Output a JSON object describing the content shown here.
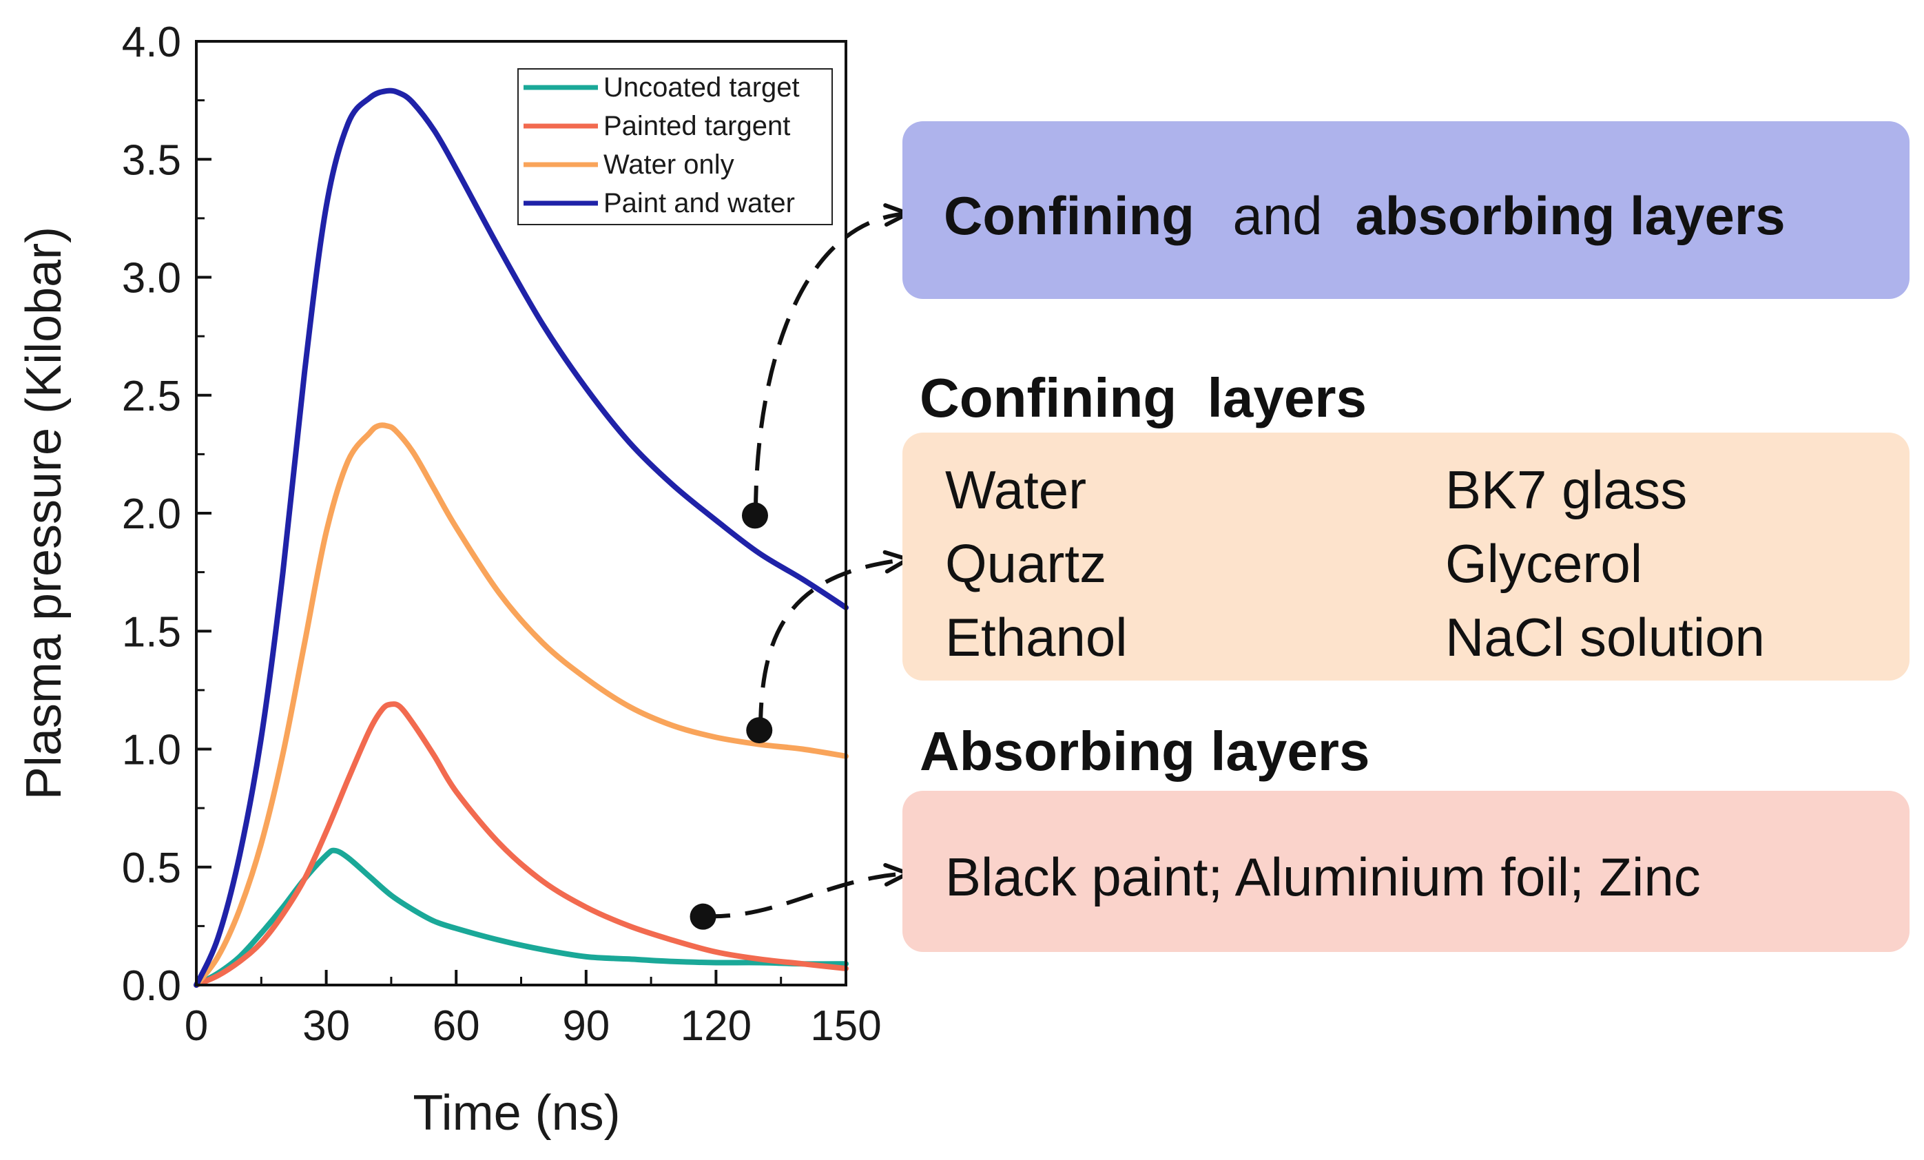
{
  "chart_data": {
    "type": "line",
    "xlabel": "Time (ns)",
    "ylabel": "Plasma pressure (Kilobar)",
    "xlim": [
      0,
      150
    ],
    "ylim": [
      0,
      4.0
    ],
    "xticks": [
      "0",
      "30",
      "60",
      "90",
      "120",
      "150"
    ],
    "yticks": [
      "0.0",
      "0.5",
      "1.0",
      "1.5",
      "2.0",
      "2.5",
      "3.0",
      "3.5",
      "4.0"
    ],
    "legend_position": "top-right",
    "series": [
      {
        "name": "Uncoated target",
        "color": "#1aa898",
        "x": [
          0,
          5,
          10,
          15,
          20,
          25,
          30,
          32,
          35,
          40,
          45,
          50,
          55,
          60,
          70,
          80,
          90,
          100,
          110,
          120,
          130,
          140,
          150
        ],
        "y": [
          0,
          0.05,
          0.12,
          0.22,
          0.33,
          0.45,
          0.55,
          0.57,
          0.54,
          0.46,
          0.38,
          0.32,
          0.27,
          0.24,
          0.19,
          0.15,
          0.12,
          0.11,
          0.1,
          0.095,
          0.095,
          0.09,
          0.09
        ]
      },
      {
        "name": "Painted targent",
        "color": "#f26a4f",
        "x": [
          0,
          5,
          10,
          15,
          20,
          25,
          30,
          35,
          40,
          43,
          45,
          47,
          50,
          55,
          60,
          70,
          80,
          90,
          100,
          110,
          120,
          130,
          140,
          150
        ],
        "y": [
          0,
          0.04,
          0.1,
          0.18,
          0.3,
          0.45,
          0.65,
          0.87,
          1.08,
          1.17,
          1.19,
          1.18,
          1.11,
          0.97,
          0.82,
          0.6,
          0.44,
          0.33,
          0.25,
          0.19,
          0.14,
          0.11,
          0.09,
          0.07
        ]
      },
      {
        "name": "Water only",
        "color": "#f9a45a",
        "x": [
          0,
          5,
          10,
          15,
          20,
          25,
          30,
          35,
          40,
          42,
          44,
          46,
          50,
          55,
          60,
          70,
          80,
          90,
          100,
          110,
          120,
          130,
          140,
          150
        ],
        "y": [
          0,
          0.12,
          0.32,
          0.6,
          0.98,
          1.45,
          1.92,
          2.22,
          2.34,
          2.37,
          2.37,
          2.35,
          2.26,
          2.1,
          1.94,
          1.66,
          1.45,
          1.3,
          1.18,
          1.1,
          1.05,
          1.02,
          1.0,
          0.97
        ]
      },
      {
        "name": "Paint and water",
        "color": "#1f22a8",
        "x": [
          0,
          5,
          10,
          15,
          20,
          25,
          30,
          35,
          40,
          44,
          47,
          50,
          55,
          60,
          70,
          80,
          90,
          100,
          110,
          120,
          130,
          140,
          150
        ],
        "y": [
          0,
          0.2,
          0.55,
          1.05,
          1.75,
          2.6,
          3.3,
          3.65,
          3.76,
          3.79,
          3.78,
          3.74,
          3.62,
          3.46,
          3.12,
          2.8,
          2.53,
          2.3,
          2.12,
          1.97,
          1.83,
          1.72,
          1.6
        ]
      }
    ]
  },
  "panel": {
    "box1": {
      "part1": "Confining",
      "part2": "and",
      "part3": "absorbing layers",
      "color": "#aeb3ec"
    },
    "confining": {
      "title": "Confining  layers",
      "color": "#fde3cc",
      "col1": [
        "Water",
        "Quartz",
        "Ethanol"
      ],
      "col2": [
        "BK7 glass",
        "Glycerol",
        "NaCl solution"
      ]
    },
    "absorbing": {
      "title": "Absorbing layers",
      "color": "#fad3cb",
      "text": "Black paint; Aluminium foil; Zinc"
    },
    "annotations": [
      {
        "x": 129,
        "y": 1.99,
        "target": "Confining and absorbing layers"
      },
      {
        "x": 130,
        "y": 1.08,
        "target": "Confining  layers"
      },
      {
        "x": 117,
        "y": 0.29,
        "target": "Absorbing layers"
      }
    ]
  }
}
